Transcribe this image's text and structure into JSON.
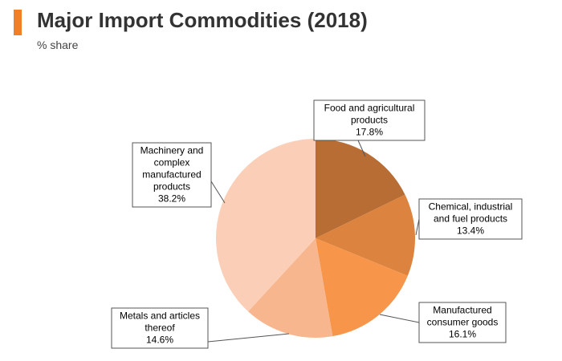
{
  "header": {
    "title": "Major Import Commodities (2018)",
    "subtitle": "% share",
    "accent_color": "#F07F2A"
  },
  "chart_data": {
    "type": "pie",
    "title": "Major Import Commodities (2018)",
    "subtitle": "% share",
    "unit": "%",
    "start": "12 o'clock, clockwise",
    "slices": [
      {
        "label_lines": [
          "Food and agricultural",
          "products"
        ],
        "value": 17.8,
        "value_label": "17.8%",
        "color": "#B86D35"
      },
      {
        "label_lines": [
          "Chemical, industrial",
          "and fuel products"
        ],
        "value": 13.4,
        "value_label": "13.4%",
        "color": "#DC843F"
      },
      {
        "label_lines": [
          "Manufactured",
          "consumer goods"
        ],
        "value": 16.1,
        "value_label": "16.1%",
        "color": "#F7964A"
      },
      {
        "label_lines": [
          "Metals and articles",
          "thereof"
        ],
        "value": 14.6,
        "value_label": "14.6%",
        "color": "#F8B68F"
      },
      {
        "label_lines": [
          "Machinery and",
          "complex",
          "manufactured",
          "products"
        ],
        "value": 38.2,
        "value_label": "38.2%",
        "color": "#FBCFB7"
      }
    ]
  }
}
